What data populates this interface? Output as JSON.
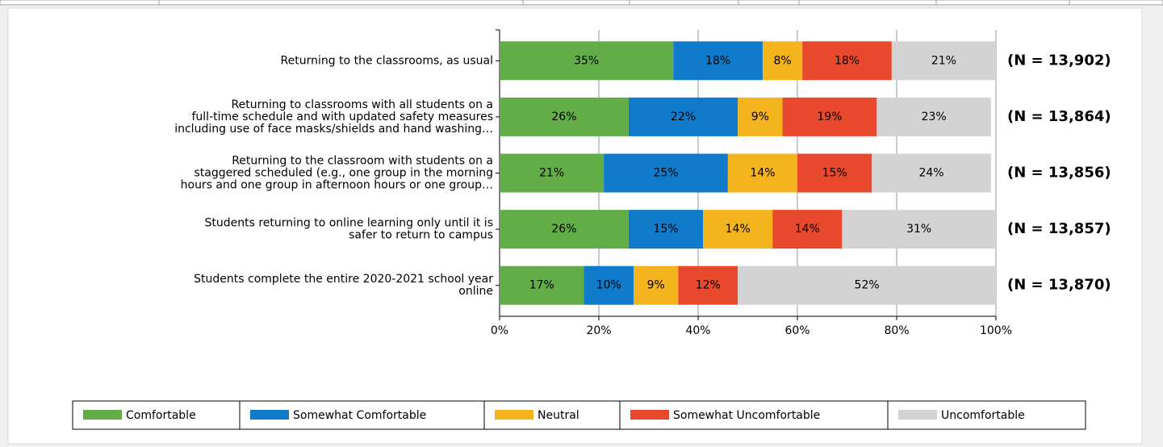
{
  "chart_data": {
    "type": "stacked_barh",
    "categories": [
      "Returning to the classrooms, as usual",
      "Returning to classrooms with all students on a\nfull-time schedule and with updated safety measures\nincluding use of face masks/shields and hand washing…",
      "Returning to the classroom with students on a\nstaggered scheduled (e.g., one group in the morning\nhours and one group in afternoon hours or one group…",
      "Students returning to online learning only until it is\nsafer to return to campus",
      "Students complete the entire 2020-2021 school year\nonline"
    ],
    "series": [
      {
        "name": "Comfortable",
        "color": "#63ad48",
        "values": [
          35,
          26,
          21,
          26,
          17
        ],
        "value_labels": [
          "35%",
          "26%",
          "21%",
          "26%",
          "17%"
        ]
      },
      {
        "name": "Somewhat Comfortable",
        "color": "#0f7bca",
        "values": [
          18,
          22,
          25,
          15,
          10
        ],
        "value_labels": [
          "18%",
          "22%",
          "25%",
          "15%",
          "10%"
        ]
      },
      {
        "name": "Neutral",
        "color": "#f3b41d",
        "values": [
          8,
          9,
          14,
          14,
          9
        ],
        "value_labels": [
          "8%",
          "9%",
          "14%",
          "14%",
          "9%"
        ]
      },
      {
        "name": "Somewhat Uncomfortable",
        "color": "#e8492c",
        "values": [
          18,
          19,
          15,
          14,
          12
        ],
        "value_labels": [
          "18%",
          "19%",
          "15%",
          "14%",
          "12%"
        ]
      },
      {
        "name": "Uncomfortable",
        "color": "#d3d3d3",
        "values": [
          21,
          23,
          24,
          31,
          52
        ],
        "value_labels": [
          "21%",
          "23%",
          "24%",
          "31%",
          "52%"
        ]
      }
    ],
    "annotations": [
      "(N = 13,902)",
      "(N = 13,864)",
      "(N = 13,856)",
      "(N = 13,857)",
      "(N = 13,870)"
    ],
    "xlim": [
      0,
      100
    ],
    "xticks": [
      {
        "value": 0,
        "label": "0%"
      },
      {
        "value": 20,
        "label": "20%"
      },
      {
        "value": 40,
        "label": "40%"
      },
      {
        "value": 60,
        "label": "60%"
      },
      {
        "value": 80,
        "label": "80%"
      },
      {
        "value": 100,
        "label": "100%"
      }
    ],
    "grid": true,
    "legend": "bottom"
  }
}
